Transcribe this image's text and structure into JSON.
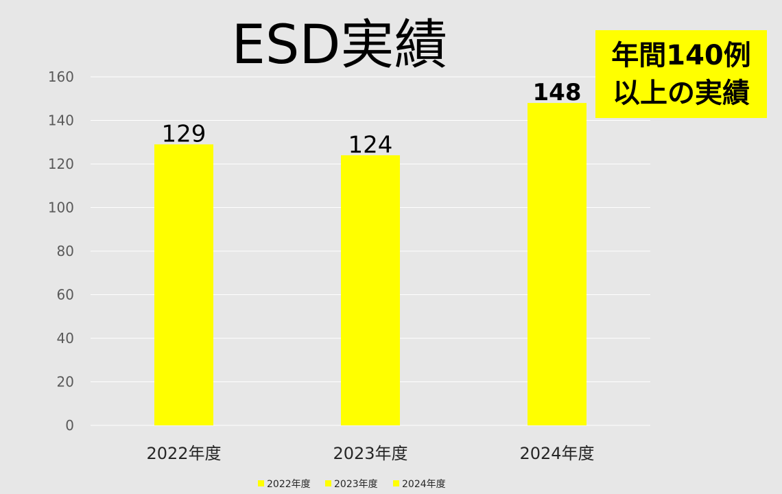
{
  "colors": {
    "background": "#e7e7e7",
    "bar": "#ffff00",
    "gridline": "#ffffff",
    "callout_bg": "#ffff00"
  },
  "callout": {
    "line1": "年間140例",
    "line2": "以上の実績"
  },
  "chart_data": {
    "type": "bar",
    "title": "ESD実績",
    "xlabel": "",
    "ylabel": "",
    "categories": [
      "2022年度",
      "2023年度",
      "2024年度"
    ],
    "values": [
      129,
      124,
      148
    ],
    "data_labels": [
      "129",
      "124",
      "148"
    ],
    "data_label_bold": [
      false,
      false,
      true
    ],
    "ylim": [
      0,
      160
    ],
    "yticks": [
      "0",
      "20",
      "40",
      "60",
      "80",
      "100",
      "120",
      "140",
      "160"
    ],
    "grid": true,
    "legend_position": "bottom",
    "legend": [
      "2022年度",
      "2023年度",
      "2024年度"
    ]
  }
}
